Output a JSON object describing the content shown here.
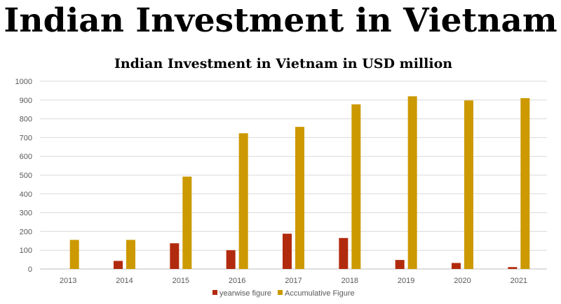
{
  "page_title": "Indian Investment in Vietnam",
  "chart_data": {
    "type": "bar",
    "title": "Indian Investment in Vietnam in USD million",
    "xlabel": "",
    "ylabel": "",
    "categories": [
      "2013",
      "2014",
      "2015",
      "2016",
      "2017",
      "2018",
      "2019",
      "2020",
      "2021"
    ],
    "series": [
      {
        "name": "yearwise figure",
        "color": "#b22a0e",
        "values": [
          null,
          43,
          137,
          100,
          188,
          165,
          48,
          32,
          10
        ]
      },
      {
        "name": "Accumulative Figure",
        "color": "#cc9900",
        "values": [
          155,
          155,
          492,
          723,
          757,
          877,
          920,
          898,
          910
        ]
      }
    ],
    "ylim": [
      0,
      1000
    ],
    "yticks": [
      0,
      100,
      200,
      300,
      400,
      500,
      600,
      700,
      800,
      900,
      1000
    ],
    "grid": true,
    "legend": "bottom-center"
  }
}
